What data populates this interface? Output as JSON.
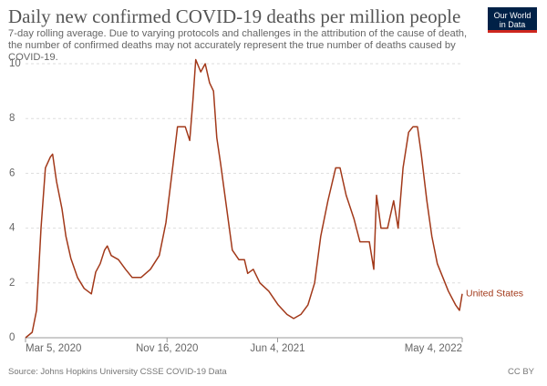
{
  "chart_data": {
    "type": "line",
    "title": "Daily new confirmed COVID-19 deaths per million people",
    "subtitle": "7-day rolling average. Due to varying protocols and challenges in the attribution of the cause of death, the number of confirmed deaths may not accurately represent the true number of deaths caused by COVID-19.",
    "logo": [
      "Our World",
      "in Data"
    ],
    "source": "Source: Johns Hopkins University CSSE COVID-19 Data",
    "license": "CC BY",
    "x": [
      "2020-03-05",
      "2020-03-17",
      "2020-03-25",
      "2020-04-02",
      "2020-04-10",
      "2020-04-19",
      "2020-04-23",
      "2020-04-30",
      "2020-05-10",
      "2020-05-17",
      "2020-05-26",
      "2020-06-07",
      "2020-06-19",
      "2020-07-02",
      "2020-07-10",
      "2020-07-18",
      "2020-07-26",
      "2020-07-31",
      "2020-08-07",
      "2020-08-20",
      "2020-09-02",
      "2020-09-14",
      "2020-09-30",
      "2020-10-17",
      "2020-11-02",
      "2020-11-14",
      "2020-11-27",
      "2020-12-05",
      "2020-12-19",
      "2020-12-27",
      "2021-01-02",
      "2021-01-07",
      "2021-01-16",
      "2021-01-24",
      "2021-02-01",
      "2021-02-08",
      "2021-02-14",
      "2021-02-21",
      "2021-03-03",
      "2021-03-14",
      "2021-03-26",
      "2021-04-05",
      "2021-04-11",
      "2021-04-21",
      "2021-05-03",
      "2021-05-19",
      "2021-06-05",
      "2021-06-21",
      "2021-07-03",
      "2021-07-16",
      "2021-07-29",
      "2021-08-10",
      "2021-08-21",
      "2021-09-03",
      "2021-09-17",
      "2021-09-25",
      "2021-10-06",
      "2021-10-20",
      "2021-10-31",
      "2021-11-08",
      "2021-11-17",
      "2021-11-25",
      "2021-11-30",
      "2021-12-08",
      "2021-12-20",
      "2021-12-31",
      "2022-01-08",
      "2022-01-17",
      "2022-01-27",
      "2022-02-04",
      "2022-02-12",
      "2022-02-19",
      "2022-03-01",
      "2022-03-10",
      "2022-03-20",
      "2022-03-30",
      "2022-04-09",
      "2022-04-22",
      "2022-04-29",
      "2022-05-04"
    ],
    "series": [
      {
        "name": "United States",
        "color": "#a2391a",
        "values": [
          0,
          0.2,
          1.0,
          4.0,
          6.2,
          6.6,
          6.7,
          5.7,
          4.7,
          3.7,
          2.9,
          2.2,
          1.8,
          1.6,
          2.4,
          2.7,
          3.2,
          3.35,
          3.0,
          2.85,
          2.5,
          2.2,
          2.2,
          2.5,
          3.0,
          4.2,
          6.35,
          7.7,
          7.7,
          7.2,
          8.7,
          10.15,
          9.7,
          10.0,
          9.3,
          9.0,
          7.3,
          6.35,
          4.85,
          3.2,
          2.85,
          2.85,
          2.35,
          2.5,
          2.0,
          1.7,
          1.2,
          0.85,
          0.7,
          0.85,
          1.2,
          2.0,
          3.7,
          5.0,
          6.2,
          6.2,
          5.2,
          4.35,
          3.5,
          3.5,
          3.5,
          2.5,
          5.2,
          4.0,
          4.0,
          5.0,
          4.0,
          6.2,
          7.5,
          7.7,
          7.7,
          6.7,
          5.0,
          3.7,
          2.7,
          2.2,
          1.7,
          1.2,
          1.0,
          1.6
        ]
      }
    ],
    "xlim": [
      "2020-03-05",
      "2022-05-04"
    ],
    "xticks": [
      {
        "value": "2020-03-05",
        "label": "Mar 5, 2020"
      },
      {
        "value": "2020-11-16",
        "label": "Nov 16, 2020"
      },
      {
        "value": "2021-06-04",
        "label": "Jun 4, 2021"
      },
      {
        "value": "2022-05-04",
        "label": "May 4, 2022"
      }
    ],
    "ylim": [
      0,
      10
    ],
    "yticks": [
      0,
      2,
      4,
      6,
      8,
      10
    ],
    "grid": true
  }
}
